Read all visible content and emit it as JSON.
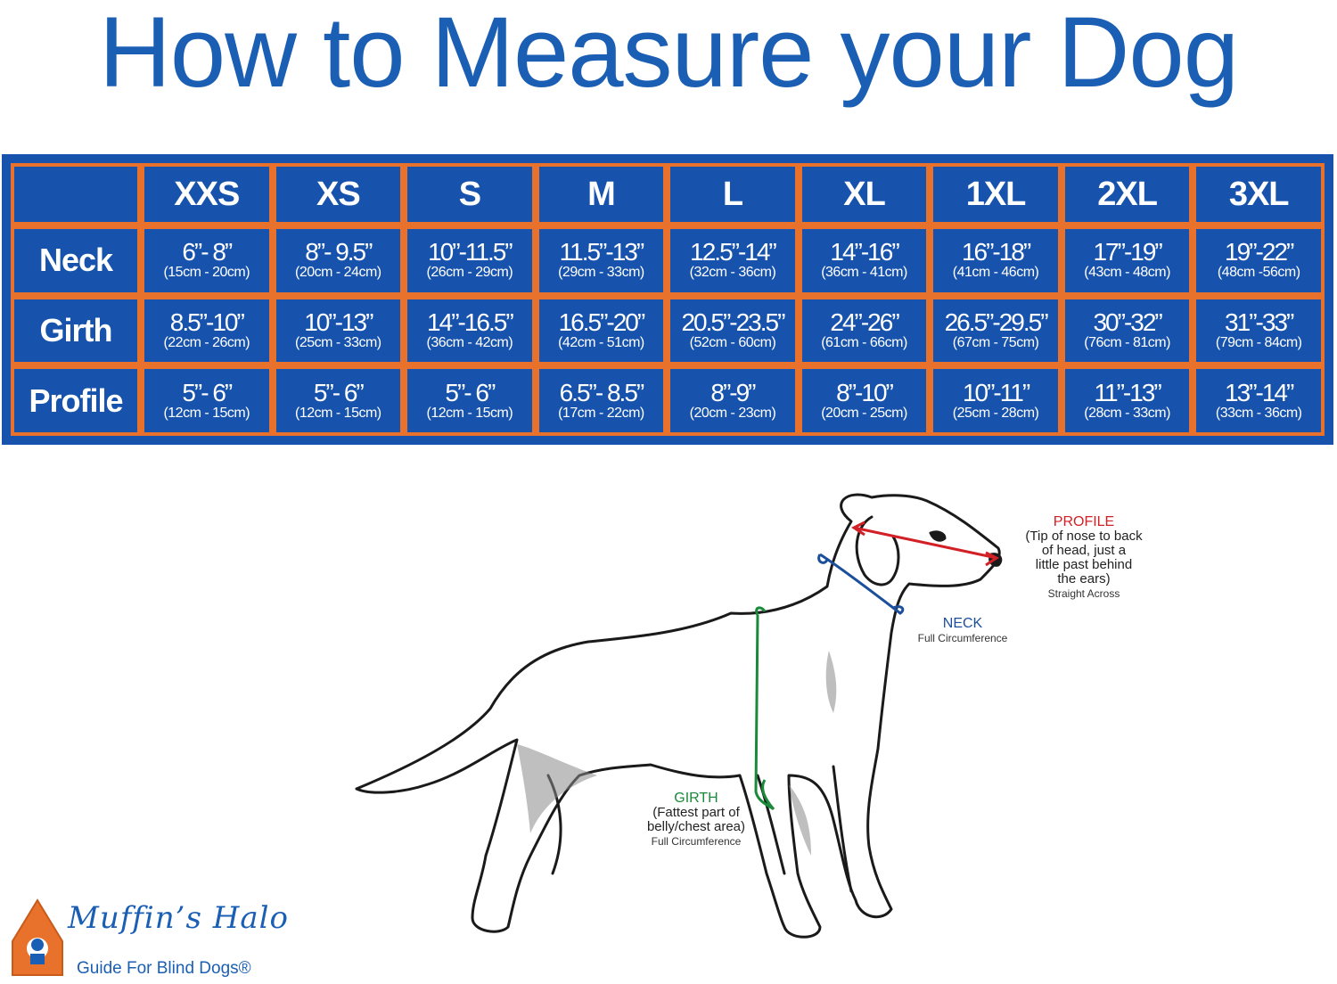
{
  "title": "How to Measure your Dog",
  "table": {
    "corner": "",
    "columns": [
      "XXS",
      "XS",
      "S",
      "M",
      "L",
      "XL",
      "1XL",
      "2XL",
      "3XL"
    ],
    "rows": [
      {
        "label": "Neck",
        "cells": [
          {
            "in": "6”- 8”",
            "cm": "(15cm - 20cm)"
          },
          {
            "in": "8”- 9.5”",
            "cm": "(20cm - 24cm)"
          },
          {
            "in": "10”-11.5”",
            "cm": "(26cm - 29cm)"
          },
          {
            "in": "11.5”-13”",
            "cm": "(29cm - 33cm)"
          },
          {
            "in": "12.5”-14”",
            "cm": "(32cm - 36cm)"
          },
          {
            "in": "14”-16”",
            "cm": "(36cm - 41cm)"
          },
          {
            "in": "16”-18”",
            "cm": "(41cm - 46cm)"
          },
          {
            "in": "17”-19”",
            "cm": "(43cm - 48cm)"
          },
          {
            "in": "19”-22”",
            "cm": "(48cm -56cm)"
          }
        ]
      },
      {
        "label": "Girth",
        "cells": [
          {
            "in": "8.5”-10”",
            "cm": "(22cm - 26cm)"
          },
          {
            "in": "10”-13”",
            "cm": "(25cm - 33cm)"
          },
          {
            "in": "14”-16.5”",
            "cm": "(36cm - 42cm)"
          },
          {
            "in": "16.5”-20”",
            "cm": "(42cm - 51cm)"
          },
          {
            "in": "20.5”-23.5”",
            "cm": "(52cm - 60cm)"
          },
          {
            "in": "24”-26”",
            "cm": "(61cm - 66cm)"
          },
          {
            "in": "26.5”-29.5”",
            "cm": "(67cm - 75cm)"
          },
          {
            "in": "30”-32”",
            "cm": "(76cm - 81cm)"
          },
          {
            "in": "31”-33”",
            "cm": "(79cm - 84cm)"
          }
        ]
      },
      {
        "label": "Profile",
        "cells": [
          {
            "in": "5”- 6”",
            "cm": "(12cm - 15cm)"
          },
          {
            "in": "5”- 6”",
            "cm": "(12cm - 15cm)"
          },
          {
            "in": "5”- 6”",
            "cm": "(12cm - 15cm)"
          },
          {
            "in": "6.5”- 8.5”",
            "cm": "(17cm - 22cm)"
          },
          {
            "in": "8”-9”",
            "cm": "(20cm - 23cm)"
          },
          {
            "in": "8”-10”",
            "cm": "(20cm - 25cm)"
          },
          {
            "in": "10”-11”",
            "cm": "(25cm - 28cm)"
          },
          {
            "in": "11”-13”",
            "cm": "(28cm - 33cm)"
          },
          {
            "in": "13”-14”",
            "cm": "(33cm - 36cm)"
          }
        ]
      }
    ]
  },
  "diagram": {
    "profile": {
      "head": "PROFILE",
      "desc": [
        "(Tip of nose to back",
        "of head, just a",
        "little past behind",
        "the ears)"
      ],
      "note": "Straight Across",
      "color": "#d32027"
    },
    "neck": {
      "head": "NECK",
      "note": "Full Circumference",
      "color": "#1b4f9c"
    },
    "girth": {
      "head": "GIRTH",
      "desc": [
        "(Fattest part of",
        "belly/chest area)"
      ],
      "note": "Full Circumference",
      "color": "#1a8a3a"
    }
  },
  "logo": {
    "name": "Muffin’s Halo",
    "tagline": "Guide For Blind Dogs®"
  },
  "colors": {
    "brand_blue": "#1753ac",
    "accent_orange": "#e8722b",
    "title_blue": "#1b5fb4"
  }
}
